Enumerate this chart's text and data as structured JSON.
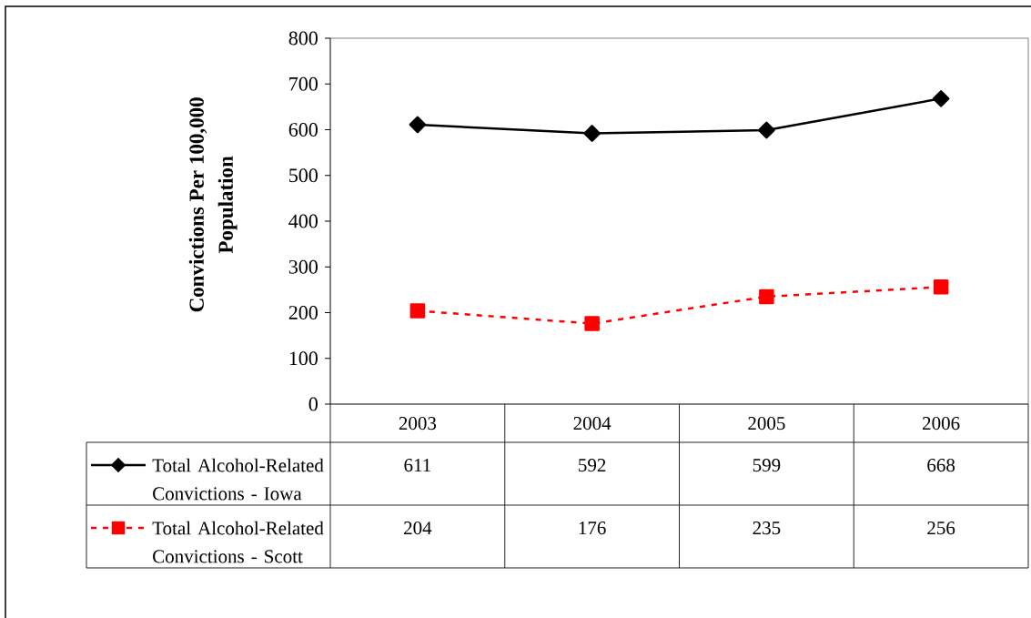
{
  "chart_data": {
    "type": "line",
    "ylabel": "Convictions Per 100,000 Population",
    "categories": [
      "2003",
      "2004",
      "2005",
      "2006"
    ],
    "series": [
      {
        "name": "Total Alcohol-Related Convictions - Iowa",
        "color": "#000000",
        "values": [
          611,
          592,
          599,
          668
        ],
        "marker": "diamond",
        "line_style": "solid"
      },
      {
        "name": "Total Alcohol-Related Convictions - Scott",
        "color": "#ff0000",
        "values": [
          204,
          176,
          235,
          256
        ],
        "marker": "square",
        "line_style": "dashed"
      }
    ],
    "ylim": [
      0,
      800
    ],
    "yticks": [
      0,
      100,
      200,
      300,
      400,
      500,
      600,
      700,
      800
    ],
    "legend": "bottom left",
    "data_labels": true
  }
}
